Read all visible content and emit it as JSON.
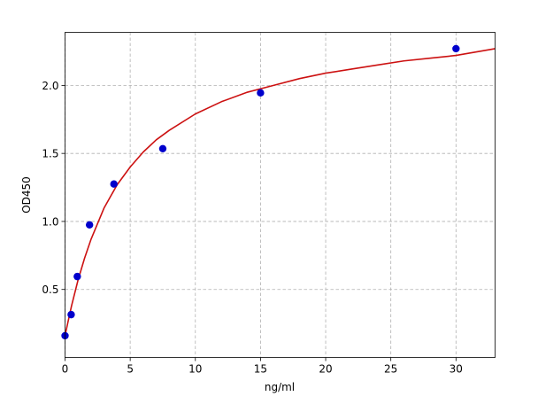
{
  "chart_data": {
    "type": "scatter",
    "xlabel": "ng/ml",
    "ylabel": "OD450",
    "xlim": [
      0,
      33
    ],
    "ylim": [
      0.0,
      2.39
    ],
    "xticks": [
      0,
      5,
      10,
      15,
      20,
      25,
      30
    ],
    "xtick_labels": [
      "0",
      "5",
      "10",
      "15",
      "20",
      "25",
      "30"
    ],
    "yticks": [
      0.5,
      1.0,
      1.5,
      2.0
    ],
    "ytick_labels": [
      "0.5",
      "1.0",
      "1.5",
      "2.0"
    ],
    "grid": true,
    "series": [
      {
        "kind": "points",
        "color": "#0000cc",
        "points": [
          {
            "x": 0,
            "y": 0.16
          },
          {
            "x": 0.47,
            "y": 0.315
          },
          {
            "x": 0.94,
            "y": 0.595
          },
          {
            "x": 1.88,
            "y": 0.975
          },
          {
            "x": 3.75,
            "y": 1.275
          },
          {
            "x": 7.5,
            "y": 1.535
          },
          {
            "x": 15,
            "y": 1.945
          },
          {
            "x": 30,
            "y": 2.27
          }
        ]
      },
      {
        "kind": "fit-curve",
        "color": "#cc1111",
        "x": [
          0,
          0.2,
          0.5,
          1,
          1.5,
          2,
          3,
          4,
          5,
          6,
          7,
          8,
          10,
          12,
          14,
          16,
          18,
          20,
          22,
          24,
          26,
          28,
          30,
          33
        ],
        "y": [
          0.16,
          0.25,
          0.38,
          0.57,
          0.73,
          0.87,
          1.1,
          1.27,
          1.4,
          1.51,
          1.6,
          1.67,
          1.79,
          1.88,
          1.95,
          2.0,
          2.05,
          2.09,
          2.12,
          2.15,
          2.18,
          2.2,
          2.22,
          2.27
        ]
      }
    ]
  }
}
